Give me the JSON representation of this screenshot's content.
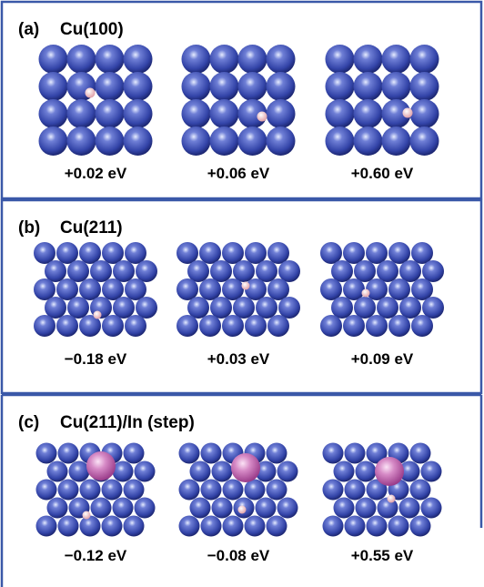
{
  "panels": [
    {
      "label": "(a)",
      "title": "Cu(100)",
      "structures": [
        {
          "energy": "+0.02 eV"
        },
        {
          "energy": "+0.06 eV"
        },
        {
          "energy": "+0.60 eV"
        }
      ]
    },
    {
      "label": "(b)",
      "title": "Cu(211)",
      "structures": [
        {
          "energy": "−0.18 eV"
        },
        {
          "energy": "+0.03 eV"
        },
        {
          "energy": "+0.09 eV"
        }
      ]
    },
    {
      "label": "(c)",
      "title": "Cu(211)/In (step)",
      "structures": [
        {
          "energy": "−0.12 eV"
        },
        {
          "energy": "−0.08 eV"
        },
        {
          "energy": "+0.55 eV"
        }
      ]
    }
  ]
}
